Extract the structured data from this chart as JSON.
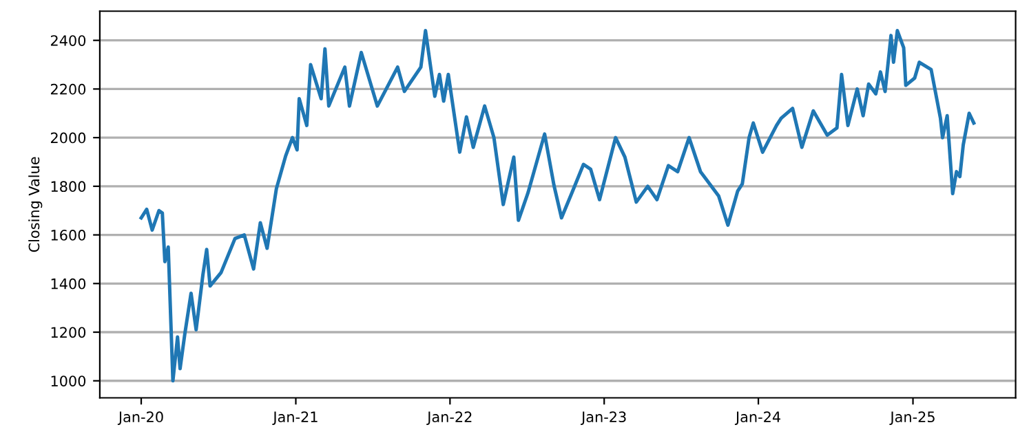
{
  "chart_data": {
    "type": "line",
    "ylabel": "Closing Value",
    "x": [
      "2020-01-01",
      "2020-01-14",
      "2020-01-27",
      "2020-02-12",
      "2020-02-20",
      "2020-02-26",
      "2020-03-05",
      "2020-03-16",
      "2020-03-27",
      "2020-04-02",
      "2020-04-13",
      "2020-04-28",
      "2020-05-10",
      "2020-05-26",
      "2020-06-04",
      "2020-06-12",
      "2020-07-08",
      "2020-08-10",
      "2020-09-01",
      "2020-09-23",
      "2020-10-09",
      "2020-10-25",
      "2020-11-16",
      "2020-12-08",
      "2020-12-24",
      "2021-01-04",
      "2021-01-09",
      "2021-01-27",
      "2021-02-05",
      "2021-03-02",
      "2021-03-11",
      "2021-03-20",
      "2021-04-27",
      "2021-05-08",
      "2021-06-05",
      "2021-07-13",
      "2021-08-30",
      "2021-09-15",
      "2021-10-24",
      "2021-11-04",
      "2021-11-26",
      "2021-12-07",
      "2021-12-17",
      "2021-12-28",
      "2022-01-24",
      "2022-02-09",
      "2022-02-25",
      "2022-03-24",
      "2022-04-15",
      "2022-05-07",
      "2022-06-01",
      "2022-06-12",
      "2022-07-05",
      "2022-08-13",
      "2022-09-04",
      "2022-09-22",
      "2022-10-17",
      "2022-11-13",
      "2022-11-30",
      "2022-12-21",
      "2023-01-28",
      "2023-02-19",
      "2023-03-18",
      "2023-04-14",
      "2023-05-06",
      "2023-06-02",
      "2023-06-24",
      "2023-07-21",
      "2023-08-17",
      "2023-09-29",
      "2023-10-21",
      "2023-11-13",
      "2023-11-24",
      "2023-12-10",
      "2023-12-20",
      "2024-01-11",
      "2024-02-13",
      "2024-02-24",
      "2024-03-22",
      "2024-04-13",
      "2024-05-10",
      "2024-06-12",
      "2024-07-05",
      "2024-07-16",
      "2024-07-31",
      "2024-08-22",
      "2024-09-05",
      "2024-09-18",
      "2024-10-05",
      "2024-10-16",
      "2024-10-27",
      "2024-11-10",
      "2024-11-16",
      "2024-11-25",
      "2024-12-10",
      "2024-12-15",
      "2025-01-05",
      "2025-01-16",
      "2025-02-13",
      "2025-03-07",
      "2025-03-12",
      "2025-03-23",
      "2025-04-05",
      "2025-04-14",
      "2025-04-22",
      "2025-04-30",
      "2025-05-14",
      "2025-05-25"
    ],
    "series": [
      {
        "color": "#1f77b4",
        "values": [
          1670,
          1705,
          1620,
          1700,
          1690,
          1490,
          1550,
          1000,
          1180,
          1050,
          1190,
          1360,
          1210,
          1435,
          1540,
          1390,
          1445,
          1585,
          1600,
          1460,
          1650,
          1545,
          1790,
          1925,
          2000,
          1950,
          2160,
          2050,
          2300,
          2160,
          2365,
          2130,
          2290,
          2130,
          2350,
          2130,
          2290,
          2190,
          2290,
          2440,
          2170,
          2260,
          2150,
          2260,
          1940,
          2085,
          1960,
          2130,
          2000,
          1725,
          1920,
          1660,
          1775,
          2015,
          1805,
          1670,
          1775,
          1890,
          1870,
          1745,
          2000,
          1920,
          1735,
          1800,
          1745,
          1885,
          1860,
          2000,
          1860,
          1760,
          1640,
          1780,
          1810,
          2000,
          2060,
          1940,
          2050,
          2080,
          2120,
          1960,
          2110,
          2010,
          2040,
          2260,
          2050,
          2200,
          2090,
          2220,
          2180,
          2270,
          2190,
          2420,
          2310,
          2440,
          2370,
          2215,
          2245,
          2310,
          2280,
          2080,
          2000,
          2090,
          1770,
          1860,
          1840,
          1970,
          2100,
          2060
        ]
      }
    ],
    "xlim": [
      "2019-09-25",
      "2025-09-01"
    ],
    "xticks": [
      {
        "value": "2020-01-01",
        "label": "Jan-20"
      },
      {
        "value": "2021-01-01",
        "label": "Jan-21"
      },
      {
        "value": "2022-01-01",
        "label": "Jan-22"
      },
      {
        "value": "2023-01-01",
        "label": "Jan-23"
      },
      {
        "value": "2024-01-01",
        "label": "Jan-24"
      },
      {
        "value": "2025-01-01",
        "label": "Jan-25"
      }
    ],
    "ylim": [
      930,
      2520
    ],
    "yticks": [
      1000,
      1200,
      1400,
      1600,
      1800,
      2000,
      2200,
      2400
    ],
    "grid": "y",
    "line_style": "solid"
  }
}
